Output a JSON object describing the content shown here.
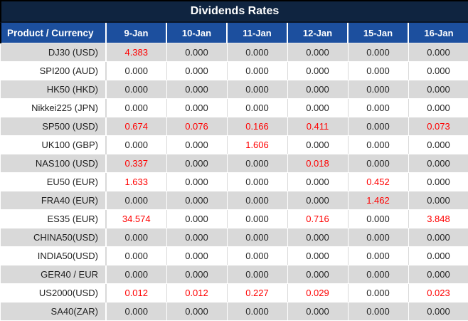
{
  "title": "Dividends Rates",
  "colors": {
    "title_bg": "#0f2440",
    "header_bg": "#1c4f9e",
    "row_alt_bg": "#d9d9d9",
    "value_red": "#ff0000",
    "text_dark": "#262626"
  },
  "table": {
    "product_header": "Product / Currency",
    "date_headers": [
      "9-Jan",
      "10-Jan",
      "11-Jan",
      "12-Jan",
      "15-Jan",
      "16-Jan"
    ],
    "zero_value": "0.000",
    "rows": [
      {
        "product": "DJ30 (USD)",
        "values": [
          "4.383",
          "0.000",
          "0.000",
          "0.000",
          "0.000",
          "0.000"
        ]
      },
      {
        "product": "SPI200 (AUD)",
        "values": [
          "0.000",
          "0.000",
          "0.000",
          "0.000",
          "0.000",
          "0.000"
        ]
      },
      {
        "product": "HK50 (HKD)",
        "values": [
          "0.000",
          "0.000",
          "0.000",
          "0.000",
          "0.000",
          "0.000"
        ]
      },
      {
        "product": "Nikkei225 (JPN)",
        "values": [
          "0.000",
          "0.000",
          "0.000",
          "0.000",
          "0.000",
          "0.000"
        ]
      },
      {
        "product": "SP500 (USD)",
        "values": [
          "0.674",
          "0.076",
          "0.166",
          "0.411",
          "0.000",
          "0.073"
        ]
      },
      {
        "product": "UK100 (GBP)",
        "values": [
          "0.000",
          "0.000",
          "1.606",
          "0.000",
          "0.000",
          "0.000"
        ]
      },
      {
        "product": "NAS100 (USD)",
        "values": [
          "0.337",
          "0.000",
          "0.000",
          "0.018",
          "0.000",
          "0.000"
        ]
      },
      {
        "product": "EU50 (EUR)",
        "values": [
          "1.633",
          "0.000",
          "0.000",
          "0.000",
          "0.452",
          "0.000"
        ]
      },
      {
        "product": "FRA40 (EUR)",
        "values": [
          "0.000",
          "0.000",
          "0.000",
          "0.000",
          "1.462",
          "0.000"
        ]
      },
      {
        "product": "ES35 (EUR)",
        "values": [
          "34.574",
          "0.000",
          "0.000",
          "0.716",
          "0.000",
          "3.848"
        ]
      },
      {
        "product": "CHINA50(USD)",
        "values": [
          "0.000",
          "0.000",
          "0.000",
          "0.000",
          "0.000",
          "0.000"
        ]
      },
      {
        "product": "INDIA50(USD)",
        "values": [
          "0.000",
          "0.000",
          "0.000",
          "0.000",
          "0.000",
          "0.000"
        ]
      },
      {
        "product": "GER40 / EUR",
        "values": [
          "0.000",
          "0.000",
          "0.000",
          "0.000",
          "0.000",
          "0.000"
        ]
      },
      {
        "product": "US2000(USD)",
        "values": [
          "0.012",
          "0.012",
          "0.227",
          "0.029",
          "0.000",
          "0.023"
        ]
      },
      {
        "product": "SA40(ZAR)",
        "values": [
          "0.000",
          "0.000",
          "0.000",
          "0.000",
          "0.000",
          "0.000"
        ]
      }
    ]
  }
}
